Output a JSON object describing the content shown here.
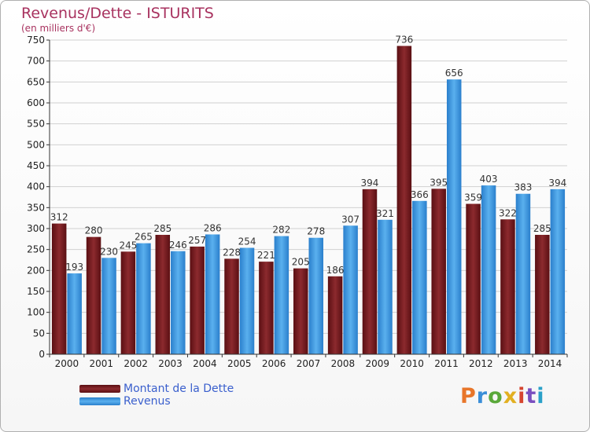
{
  "title": "Revenus/Dette - ISTURITS",
  "subtitle": "(en milliers d'€)",
  "logo_text": "Proxiti",
  "logo_colors": [
    "#e8762a",
    "#3a8ed8",
    "#5aa83a",
    "#e2b021",
    "#d6452f",
    "#7a4fbf",
    "#2aa0c8"
  ],
  "colors": {
    "dette": "#7a1e22",
    "revenus": "#3d97e0",
    "grid": "#d0d0d0",
    "axis": "#333333"
  },
  "chart_data": {
    "type": "bar",
    "title": "Revenus/Dette - ISTURITS",
    "subtitle": "(en milliers d'€)",
    "categories": [
      "2000",
      "2001",
      "2002",
      "2003",
      "2004",
      "2005",
      "2006",
      "2007",
      "2008",
      "2009",
      "2010",
      "2011",
      "2012",
      "2013",
      "2014"
    ],
    "series": [
      {
        "name": "Montant de la Dette",
        "values": [
          312,
          280,
          245,
          285,
          257,
          228,
          221,
          205,
          186,
          394,
          736,
          395,
          359,
          322,
          285
        ]
      },
      {
        "name": "Revenus",
        "values": [
          193,
          230,
          265,
          246,
          286,
          254,
          282,
          278,
          307,
          321,
          366,
          656,
          403,
          383,
          394
        ]
      }
    ],
    "ylim": [
      0,
      750
    ],
    "yticks": [
      0,
      50,
      100,
      150,
      200,
      250,
      300,
      350,
      400,
      450,
      500,
      550,
      600,
      650,
      700,
      750
    ],
    "grid": true,
    "legend": "bottom-left"
  }
}
